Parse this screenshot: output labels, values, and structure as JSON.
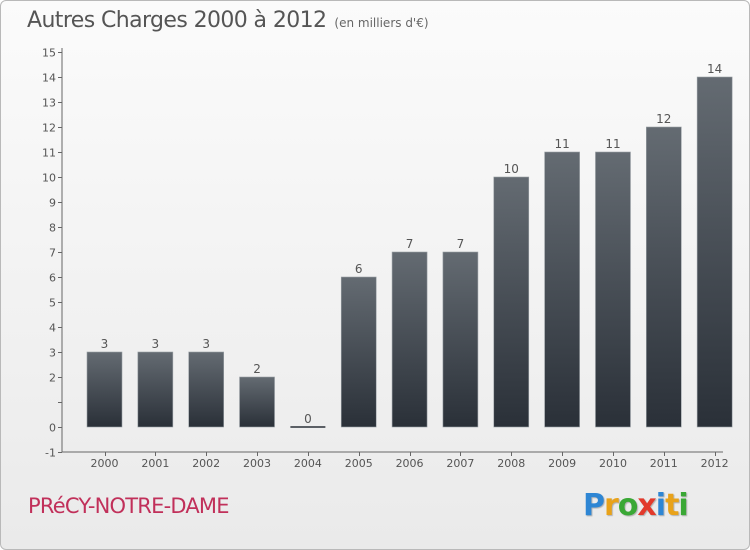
{
  "title": "Autres Charges 2000 à 2012",
  "subtitle": "(en milliers d'€)",
  "town": "PRéCY-NOTRE-DAME",
  "logo": {
    "letters": [
      {
        "ch": "P",
        "color": "#2e86d4"
      },
      {
        "ch": "r",
        "color": "#e8a21a"
      },
      {
        "ch": "o",
        "color": "#3aa835"
      },
      {
        "ch": "x",
        "color": "#e23a2c"
      },
      {
        "ch": "i",
        "color": "#2e86d4"
      },
      {
        "ch": "t",
        "color": "#e8a21a"
      },
      {
        "ch": "i",
        "color": "#3aa835"
      }
    ]
  },
  "colors": {
    "bar_top": "#646b72",
    "bar_bottom": "#2a3038",
    "label": "#555555"
  },
  "chart_data": {
    "type": "bar",
    "title": "Autres Charges 2000 à 2012",
    "subtitle": "(en milliers d'€)",
    "categories": [
      "2000",
      "2001",
      "2002",
      "2003",
      "2004",
      "2005",
      "2006",
      "2007",
      "2008",
      "2009",
      "2010",
      "2011",
      "2012"
    ],
    "values": [
      3,
      3,
      3,
      2,
      0,
      6,
      7,
      7,
      10,
      11,
      11,
      12,
      14
    ],
    "data_labels": [
      "3",
      "3",
      "3",
      "2",
      "0",
      "6",
      "7",
      "7",
      "10",
      "11",
      "11",
      "12",
      "14"
    ],
    "ylim": [
      -1,
      15
    ],
    "yticks": [
      -1,
      0,
      1,
      2,
      3,
      4,
      5,
      6,
      7,
      8,
      9,
      10,
      11,
      12,
      13,
      14,
      15
    ],
    "ytick_labels": [
      "-1",
      "0",
      "",
      "2",
      "3",
      "4",
      "5",
      "6",
      "7",
      "8",
      "9",
      "10",
      "11",
      "12",
      "13",
      "14",
      "15"
    ],
    "grid": false,
    "legend": "none"
  }
}
